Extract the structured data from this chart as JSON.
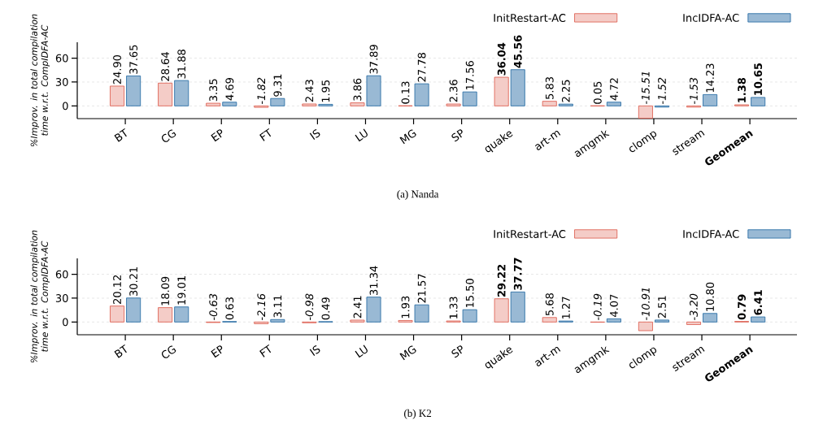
{
  "chart_data": [
    {
      "type": "bar",
      "title": "(a) Nanda",
      "ylabel": "%Improv. in total compilation time w.r.t. CompIDFA-AC",
      "categories": [
        "BT",
        "CG",
        "EP",
        "FT",
        "IS",
        "LU",
        "MG",
        "SP",
        "quake",
        "art-m",
        "amgmk",
        "clomp",
        "stream",
        "**Geomean**"
      ],
      "series": [
        {
          "name": "InitRestart-AC",
          "color": "#dc5546",
          "values": [
            24.9,
            28.64,
            3.35,
            -1.82,
            2.43,
            3.86,
            0.13,
            2.36,
            36.04,
            5.83,
            0.05,
            -15.51,
            -1.53,
            1.38
          ],
          "value_labels": [
            "24.90",
            "28.64",
            "3.35",
            "*-1.82*",
            "2.43",
            "3.86",
            "0.13",
            "2.36",
            "**36.04**",
            "5.83",
            "0.05",
            "*-15.51*",
            "*-1.53*",
            "**1.38**"
          ]
        },
        {
          "name": "IncIDFA-AC",
          "color": "#1c64a0",
          "values": [
            37.65,
            31.88,
            4.69,
            9.31,
            1.95,
            37.89,
            27.78,
            17.56,
            45.56,
            2.25,
            4.72,
            -1.52,
            14.23,
            10.65
          ],
          "value_labels": [
            "37.65",
            "31.88",
            "4.69",
            "9.31",
            "1.95",
            "37.89",
            "27.78",
            "17.56",
            "**45.56**",
            "2.25",
            "4.72",
            "*-1.52*",
            "14.23",
            "**10.65**"
          ]
        }
      ],
      "ylim": [
        -16,
        80
      ],
      "yticks": [
        0,
        30,
        60
      ],
      "grid": "y",
      "legend": "top right"
    },
    {
      "type": "bar",
      "title": "(b) K2",
      "ylabel": "%Improv. in total compilation time w.r.t. CompIDFA-AC",
      "categories": [
        "BT",
        "CG",
        "EP",
        "FT",
        "IS",
        "LU",
        "MG",
        "SP",
        "quake",
        "art-m",
        "amgmk",
        "clomp",
        "stream",
        "**Geomean**"
      ],
      "series": [
        {
          "name": "InitRestart-AC",
          "color": "#dc5546",
          "values": [
            20.12,
            18.09,
            -0.63,
            -2.16,
            -0.98,
            2.41,
            1.93,
            1.33,
            29.22,
            5.68,
            -0.19,
            -10.91,
            -3.2,
            0.79
          ],
          "value_labels": [
            "20.12",
            "18.09",
            "*-0.63*",
            "*-2.16*",
            "*-0.98*",
            "2.41",
            "1.93",
            "1.33",
            "**29.22**",
            "5.68",
            "*-0.19*",
            "*-10.91*",
            "*-3.20*",
            "**0.79**"
          ]
        },
        {
          "name": "IncIDFA-AC",
          "color": "#1c64a0",
          "values": [
            30.21,
            19.01,
            0.63,
            3.11,
            0.49,
            31.34,
            21.57,
            15.5,
            37.77,
            1.27,
            4.07,
            2.51,
            10.8,
            6.41
          ],
          "value_labels": [
            "30.21",
            "19.01",
            "0.63",
            "3.11",
            "0.49",
            "31.34",
            "21.57",
            "15.50",
            "**37.77**",
            "1.27",
            "4.07",
            "2.51",
            "10.80",
            "**6.41**"
          ]
        }
      ],
      "ylim": [
        -16,
        80
      ],
      "yticks": [
        0,
        30,
        60
      ],
      "grid": "y",
      "legend": "top right"
    }
  ]
}
